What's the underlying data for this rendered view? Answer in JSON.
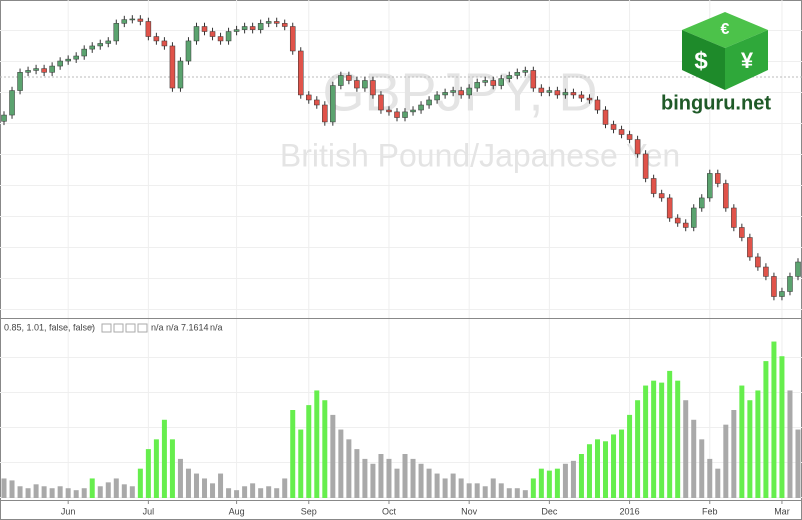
{
  "brand": "binguru.net",
  "logo_symbols": [
    "€",
    "$",
    "¥"
  ],
  "chart_data": [
    {
      "type": "candlestick",
      "title": "GBPJPY, D",
      "subtitle": "British Pound/Japanese Yen",
      "up_color": "#5ba36f",
      "down_color": "#e0534a",
      "xlim": [
        -0.5,
        99.5
      ],
      "ylim": [
        150,
        200
      ],
      "open": [
        181.0,
        182.0,
        185.9,
        188.8,
        189.1,
        189.4,
        188.8,
        189.8,
        190.6,
        190.9,
        191.4,
        192.5,
        193.0,
        193.4,
        193.8,
        196.6,
        197.2,
        197.3,
        196.9,
        194.5,
        193.8,
        193.0,
        186.3,
        190.6,
        193.8,
        196.1,
        195.3,
        194.5,
        193.8,
        195.3,
        195.6,
        196.1,
        195.6,
        196.6,
        196.9,
        196.6,
        196.1,
        192.2,
        185.2,
        184.4,
        183.6,
        180.9,
        186.7,
        188.3,
        187.5,
        186.3,
        187.5,
        185.2,
        182.8,
        182.5,
        181.6,
        182.5,
        182.8,
        183.6,
        184.4,
        185.2,
        185.6,
        185.9,
        185.2,
        186.3,
        187.2,
        187.5,
        186.7,
        187.8,
        188.3,
        188.8,
        189.1,
        186.3,
        185.6,
        185.9,
        185.2,
        185.6,
        185.2,
        184.7,
        184.4,
        182.8,
        180.5,
        179.7,
        178.9,
        178.1,
        175.8,
        171.9,
        169.5,
        168.8,
        165.6,
        164.8,
        164.1,
        167.2,
        168.8,
        172.7,
        171.1,
        167.2,
        164.1,
        162.5,
        159.4,
        157.8,
        156.3,
        153.1,
        153.9,
        156.3
      ],
      "high": [
        182.6,
        186.5,
        189.4,
        189.7,
        190.0,
        190.0,
        190.4,
        191.2,
        191.5,
        192.0,
        193.1,
        193.6,
        194.0,
        194.4,
        197.2,
        197.8,
        197.9,
        197.9,
        197.5,
        195.1,
        194.4,
        193.6,
        191.2,
        194.4,
        196.7,
        196.7,
        195.9,
        195.1,
        195.9,
        196.2,
        196.7,
        196.7,
        197.2,
        197.5,
        197.5,
        197.2,
        196.7,
        192.8,
        185.8,
        185.0,
        184.2,
        187.3,
        188.9,
        188.9,
        188.1,
        188.1,
        188.1,
        185.8,
        183.4,
        183.1,
        183.1,
        183.4,
        184.2,
        185.0,
        185.8,
        186.2,
        186.5,
        186.5,
        186.9,
        187.8,
        188.1,
        188.1,
        188.4,
        188.9,
        189.4,
        189.7,
        189.7,
        186.9,
        186.5,
        186.5,
        186.2,
        186.2,
        185.8,
        185.3,
        185.0,
        183.4,
        181.1,
        180.3,
        179.5,
        178.7,
        176.4,
        172.5,
        170.1,
        169.4,
        166.2,
        165.4,
        167.8,
        169.4,
        173.3,
        173.3,
        171.7,
        167.8,
        164.7,
        163.1,
        160.0,
        158.4,
        156.9,
        154.5,
        156.9,
        159.2
      ],
      "low": [
        180.4,
        181.4,
        185.3,
        188.2,
        188.5,
        188.2,
        188.2,
        189.2,
        190.0,
        190.3,
        190.8,
        191.9,
        192.4,
        192.8,
        193.2,
        196.0,
        196.6,
        196.3,
        193.9,
        193.2,
        192.4,
        185.7,
        185.7,
        190.0,
        193.2,
        194.7,
        193.9,
        193.2,
        193.2,
        194.7,
        195.0,
        195.0,
        195.0,
        196.0,
        196.0,
        195.5,
        191.6,
        184.6,
        183.8,
        183.0,
        180.3,
        180.3,
        186.1,
        186.9,
        185.7,
        185.7,
        184.6,
        182.2,
        181.9,
        181.0,
        181.0,
        181.9,
        182.2,
        183.0,
        183.8,
        184.6,
        185.0,
        184.6,
        184.6,
        185.7,
        186.6,
        186.1,
        186.1,
        187.2,
        187.7,
        188.2,
        185.7,
        185.0,
        185.0,
        184.6,
        184.6,
        184.6,
        184.1,
        183.8,
        182.2,
        179.9,
        179.1,
        178.3,
        177.5,
        175.2,
        171.3,
        168.9,
        168.2,
        165.0,
        164.2,
        163.5,
        163.5,
        166.6,
        168.2,
        170.5,
        166.6,
        163.5,
        161.9,
        158.8,
        157.2,
        155.7,
        152.5,
        152.5,
        153.3,
        155.7
      ],
      "close": [
        182.0,
        185.9,
        188.8,
        189.1,
        189.4,
        188.8,
        189.8,
        190.6,
        190.9,
        191.4,
        192.5,
        193.0,
        193.4,
        193.8,
        196.6,
        197.2,
        197.3,
        196.9,
        194.5,
        193.8,
        193.0,
        186.3,
        190.6,
        193.8,
        196.1,
        195.3,
        194.5,
        193.8,
        195.3,
        195.6,
        196.1,
        195.6,
        196.6,
        196.9,
        196.6,
        196.1,
        192.2,
        185.2,
        184.4,
        183.6,
        180.9,
        186.7,
        188.3,
        187.5,
        186.3,
        187.5,
        185.2,
        182.8,
        182.5,
        181.6,
        182.5,
        182.8,
        183.6,
        184.4,
        185.2,
        185.6,
        185.9,
        185.2,
        186.3,
        187.2,
        187.5,
        186.7,
        187.8,
        188.3,
        188.8,
        189.1,
        186.3,
        185.6,
        185.9,
        185.2,
        185.6,
        185.2,
        184.7,
        184.4,
        182.8,
        180.5,
        179.7,
        178.9,
        178.1,
        175.8,
        171.9,
        169.5,
        168.8,
        165.6,
        164.8,
        164.1,
        167.2,
        168.8,
        172.7,
        171.1,
        167.2,
        164.1,
        162.5,
        159.4,
        157.8,
        156.3,
        153.1,
        153.9,
        156.3,
        158.6
      ]
    },
    {
      "type": "bar",
      "study_label": "0.85, 1.01, false, false)",
      "study_values": [
        "n/a",
        "n/a",
        "7.1614",
        "n/a"
      ],
      "xlim": [
        -0.5,
        99.5
      ],
      "ylim": [
        0,
        180
      ],
      "xticks": [
        {
          "value": 8,
          "label": "Jun"
        },
        {
          "value": 18,
          "label": "Jul"
        },
        {
          "value": 29,
          "label": "Aug"
        },
        {
          "value": 38,
          "label": "Sep"
        },
        {
          "value": 48,
          "label": "Oct"
        },
        {
          "value": 58,
          "label": "Nov"
        },
        {
          "value": 68,
          "label": "Dec"
        },
        {
          "value": 78,
          "label": "2016"
        },
        {
          "value": 88,
          "label": "Feb"
        },
        {
          "value": 97,
          "label": "Mar"
        }
      ],
      "series": [
        {
          "color": "#66ee4d",
          "values": [
            null,
            null,
            null,
            null,
            null,
            null,
            null,
            null,
            null,
            null,
            null,
            20,
            null,
            null,
            null,
            null,
            null,
            30,
            50,
            60,
            80,
            60,
            null,
            null,
            null,
            null,
            null,
            null,
            null,
            null,
            null,
            null,
            null,
            null,
            null,
            null,
            90,
            70,
            95,
            110,
            100,
            null,
            null,
            null,
            null,
            null,
            null,
            null,
            null,
            null,
            null,
            null,
            null,
            null,
            null,
            null,
            null,
            null,
            null,
            null,
            null,
            null,
            null,
            null,
            null,
            null,
            20,
            30,
            28,
            30,
            null,
            null,
            45,
            55,
            60,
            58,
            65,
            70,
            85,
            100,
            115,
            120,
            118,
            130,
            120,
            null,
            null,
            null,
            null,
            null,
            null,
            null,
            115,
            100,
            110,
            140,
            160,
            145,
            null,
            null
          ]
        },
        {
          "color": "#a9a9a9",
          "values": [
            20,
            18,
            12,
            10,
            14,
            12,
            10,
            12,
            10,
            8,
            10,
            null,
            12,
            16,
            20,
            14,
            12,
            null,
            null,
            null,
            null,
            null,
            40,
            30,
            25,
            20,
            15,
            25,
            10,
            8,
            12,
            15,
            10,
            12,
            10,
            20,
            null,
            null,
            null,
            null,
            null,
            85,
            70,
            60,
            50,
            40,
            35,
            45,
            40,
            30,
            45,
            40,
            35,
            30,
            25,
            20,
            25,
            20,
            15,
            15,
            12,
            20,
            15,
            10,
            10,
            8,
            null,
            null,
            null,
            null,
            35,
            38,
            null,
            null,
            null,
            null,
            null,
            null,
            null,
            null,
            null,
            null,
            null,
            null,
            null,
            100,
            80,
            60,
            40,
            30,
            75,
            90,
            null,
            null,
            null,
            null,
            null,
            null,
            110,
            70
          ]
        }
      ]
    }
  ]
}
